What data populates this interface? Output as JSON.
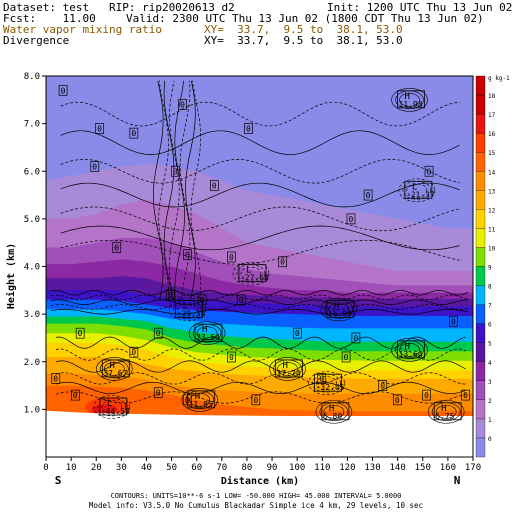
{
  "header": {
    "line1_left": "Dataset: test   RIP: rip20020613 d2",
    "line1_right": "Init: 1200 UTC Thu 13 Jun 02",
    "line2_left": "Fcst:    11.00",
    "line2_right": "Valid: 2300 UTC Thu 13 Jun 02 (1800 CDT Thu 13 Jun 02)",
    "line3_left": "Water vapor mixing ratio",
    "line3_right": "XY=  33.7,  9.5 to  38.1, 53.0",
    "line4_left": "Divergence",
    "line4_right": "XY=  33.7,  9.5 to  38.1, 53.0"
  },
  "footer": {
    "line1": "CONTOURS:  UNITS=10**-6 s-1   LOW=  -50.000      HIGH=   45.000        INTERVAL=    5.0000",
    "line2": "Model info: V3.5.0 No Cumulus Blackadar  Simple ice     4 km,  29 levels,   10 sec"
  },
  "colors": {
    "band_levels": [
      {
        "level": "0",
        "color": "#8a8ae8"
      },
      {
        "level": "1",
        "color": "#a88ad8"
      },
      {
        "level": "2",
        "color": "#b474c8"
      },
      {
        "level": "3",
        "color": "#a050b8"
      },
      {
        "level": "4",
        "color": "#8c28a4"
      },
      {
        "level": "5",
        "color": "#5a18a0"
      },
      {
        "level": "6",
        "color": "#3c14c8"
      },
      {
        "level": "7",
        "color": "#0a60ff"
      },
      {
        "level": "8",
        "color": "#00b4ff"
      },
      {
        "level": "9",
        "color": "#00c84a"
      },
      {
        "level": "10",
        "color": "#7ede00"
      },
      {
        "level": "11",
        "color": "#e8f000"
      },
      {
        "level": "12",
        "color": "#ffd200"
      },
      {
        "level": "13",
        "color": "#ffaa00"
      },
      {
        "level": "14",
        "color": "#ff8c00"
      },
      {
        "level": "15",
        "color": "#ff6400"
      },
      {
        "level": "16",
        "color": "#ff3c00"
      },
      {
        "level": "17",
        "color": "#e61414"
      },
      {
        "level": "18",
        "color": "#c80000"
      }
    ]
  },
  "chart_data": {
    "type": "heatmap",
    "xlabel": "Distance (km)",
    "ylabel": "Height (km)",
    "xlim": [
      0,
      175
    ],
    "ylim": [
      0,
      8
    ],
    "x_ticks": [
      "0",
      "10",
      "20",
      "30",
      "40",
      "50",
      "60",
      "70",
      "80",
      "90",
      "100",
      "110",
      "120",
      "130",
      "140",
      "150",
      "160",
      "170"
    ],
    "y_ticks": [
      "1.0",
      "2.0",
      "3.0",
      "4.0",
      "5.0",
      "6.0",
      "7.0",
      "8.0"
    ],
    "endpoints": {
      "left": "S",
      "right": "N"
    },
    "colorbar": {
      "unit_label": "g kg-1",
      "labels": [
        "0",
        "1",
        "2",
        "3",
        "4",
        "5",
        "6",
        "7",
        "8",
        "9",
        "10",
        "11",
        "12",
        "13",
        "14",
        "15",
        "16",
        "17",
        "18"
      ]
    },
    "contour_labels": [
      {
        "text": "H",
        "value": "11.98",
        "x": 149,
        "y": 7.5
      },
      {
        "text": "L",
        "value": "-21.37",
        "x": 152,
        "y": 5.6
      },
      {
        "text": "L",
        "value": "-27.68",
        "x": 84,
        "y": 3.85
      },
      {
        "text": "L",
        "value": "-39.38",
        "x": 58,
        "y": 3.1
      },
      {
        "text": "H",
        "value": "16.98",
        "x": 120,
        "y": 3.1
      },
      {
        "text": "H",
        "value": "23.54",
        "x": 66,
        "y": 2.6
      },
      {
        "text": "H",
        "value": "13.64",
        "x": 149,
        "y": 2.25
      },
      {
        "text": "H",
        "value": "37.67",
        "x": 28,
        "y": 1.85
      },
      {
        "text": "H",
        "value": "17.74",
        "x": 99,
        "y": 1.85
      },
      {
        "text": "L",
        "value": "-32.45",
        "x": 115,
        "y": 1.55
      },
      {
        "text": "H",
        "value": "11.85",
        "x": 63,
        "y": 1.2
      },
      {
        "text": "L",
        "value": "-44.58",
        "x": 27,
        "y": 1.05
      },
      {
        "text": "H",
        "value": "6.80",
        "x": 118,
        "y": 0.95
      },
      {
        "text": "H",
        "value": "6.75",
        "x": 164,
        "y": 0.95
      }
    ],
    "zero_labels": [
      {
        "x": 7,
        "y": 7.7
      },
      {
        "x": 56,
        "y": 7.4
      },
      {
        "x": 22,
        "y": 6.9
      },
      {
        "x": 36,
        "y": 6.8
      },
      {
        "x": 83,
        "y": 6.9
      },
      {
        "x": 20,
        "y": 6.1
      },
      {
        "x": 53,
        "y": 6.0
      },
      {
        "x": 69,
        "y": 5.7
      },
      {
        "x": 157,
        "y": 6.0
      },
      {
        "x": 132,
        "y": 5.5
      },
      {
        "x": 125,
        "y": 5.0
      },
      {
        "x": 29,
        "y": 4.4
      },
      {
        "x": 58,
        "y": 4.25
      },
      {
        "x": 76,
        "y": 4.2
      },
      {
        "x": 97,
        "y": 4.1
      },
      {
        "x": 51,
        "y": 3.4
      },
      {
        "x": 64,
        "y": 3.3
      },
      {
        "x": 80,
        "y": 3.3
      },
      {
        "x": 14,
        "y": 2.6
      },
      {
        "x": 46,
        "y": 2.6
      },
      {
        "x": 103,
        "y": 2.6
      },
      {
        "x": 127,
        "y": 2.5
      },
      {
        "x": 167,
        "y": 2.85
      },
      {
        "x": 36,
        "y": 2.2
      },
      {
        "x": 76,
        "y": 2.1
      },
      {
        "x": 123,
        "y": 2.1
      },
      {
        "x": 4,
        "y": 1.65
      },
      {
        "x": 113,
        "y": 1.65
      },
      {
        "x": 138,
        "y": 1.5
      },
      {
        "x": 12,
        "y": 1.3
      },
      {
        "x": 46,
        "y": 1.35
      },
      {
        "x": 156,
        "y": 1.3
      },
      {
        "x": 172,
        "y": 1.3
      },
      {
        "x": 58,
        "y": 1.2
      },
      {
        "x": 86,
        "y": 1.2
      },
      {
        "x": 144,
        "y": 1.2
      }
    ],
    "grid": false,
    "legend": "right"
  }
}
